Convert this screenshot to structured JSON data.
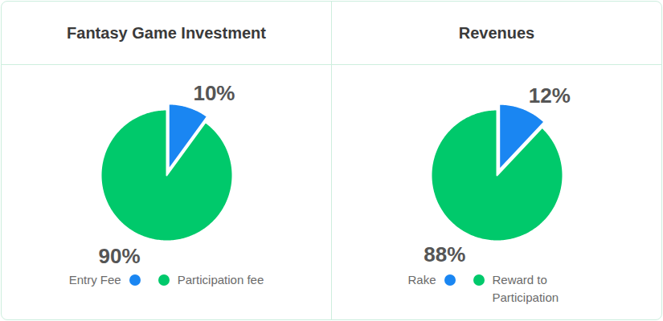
{
  "chart_data": [
    {
      "type": "pie",
      "title": "Fantasy Game Investment",
      "categories": [
        "Entry Fee",
        "Participation fee"
      ],
      "values": [
        10,
        90
      ],
      "value_labels": [
        "10%",
        "90%"
      ],
      "colors": [
        "#1a86f2",
        "#00c96b"
      ],
      "data_labels": true,
      "legend": "bottom"
    },
    {
      "type": "pie",
      "title": "Revenues",
      "categories": [
        "Rake",
        "Reward to Participation"
      ],
      "values": [
        12,
        88
      ],
      "value_labels": [
        "12%",
        "88%"
      ],
      "colors": [
        "#1a86f2",
        "#00c96b"
      ],
      "data_labels": true,
      "legend": "bottom"
    }
  ]
}
